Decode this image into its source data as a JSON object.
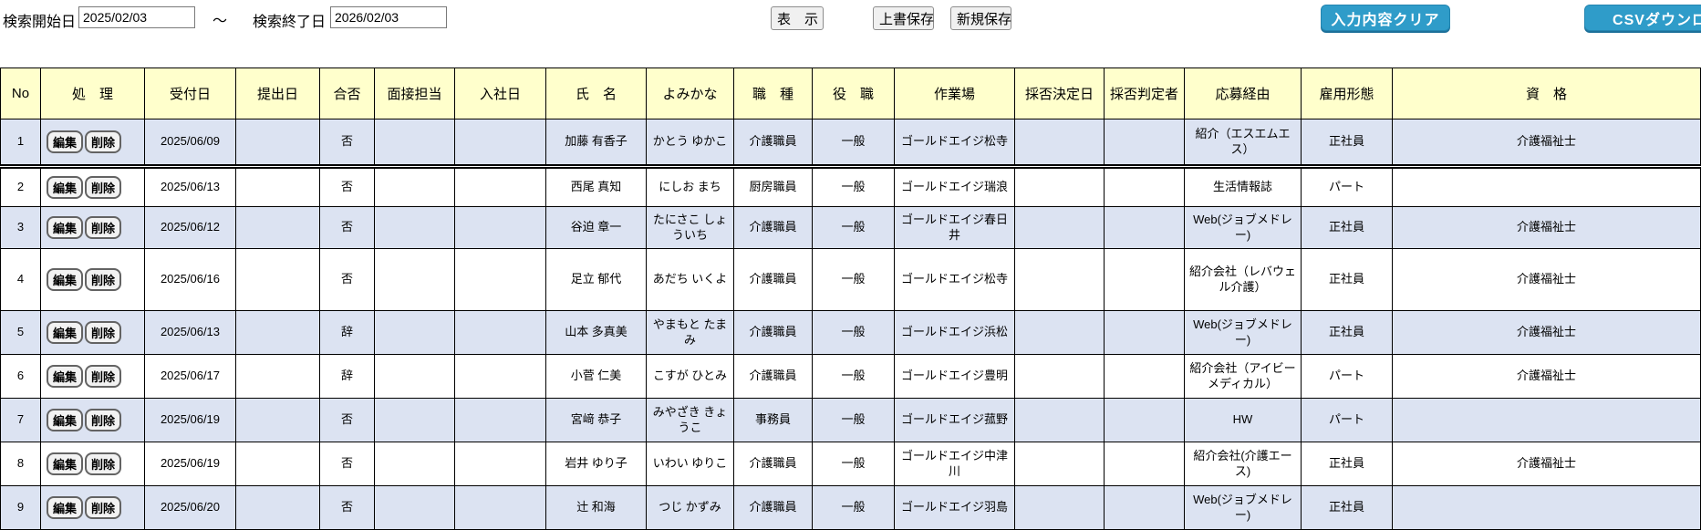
{
  "search_bar": {
    "start_label": "検索開始日",
    "start_value": "2025/02/03",
    "tilde": "～",
    "end_label": "検索終了日",
    "end_value": "2026/02/03",
    "display_button": "表　示",
    "overwrite_save_button": "上書保存",
    "new_save_button": "新規保存",
    "clear_button": "入力内容クリア",
    "csv_button": "CSVダウンロード"
  },
  "colors": {
    "header_bg": "#ffffcc",
    "row_alt_bg": "#dce3f2",
    "accent_blue": "#2f9cc9",
    "grid_border": "#000000"
  },
  "table": {
    "headers": [
      "No",
      "処　理",
      "受付日",
      "提出日",
      "合否",
      "面接担当",
      "入社日",
      "氏　名",
      "よみかな",
      "職　種",
      "役　職",
      "作業場",
      "採否決定日",
      "採否判定者",
      "応募経由",
      "雇用形態",
      "資　格"
    ],
    "edit_label": "編集",
    "delete_label": "削除",
    "rows": [
      {
        "no": "1",
        "receipt": "2025/06/09",
        "submit": "",
        "pass": "否",
        "interviewer": "",
        "join": "",
        "name": "加藤 有香子",
        "kana": "かとう ゆかこ",
        "job": "介護職員",
        "position": "一般",
        "workplace": "ゴールドエイジ松寺",
        "decision_date": "",
        "decision_by": "",
        "route": "紹介（エスエムエス）",
        "employment": "正社員",
        "qualification": "介護福祉士"
      },
      {
        "no": "2",
        "receipt": "2025/06/13",
        "submit": "",
        "pass": "否",
        "interviewer": "",
        "join": "",
        "name": "西尾 真知",
        "kana": "にしお まち",
        "job": "厨房職員",
        "position": "一般",
        "workplace": "ゴールドエイジ瑞浪",
        "decision_date": "",
        "decision_by": "",
        "route": "生活情報誌",
        "employment": "パート",
        "qualification": ""
      },
      {
        "no": "3",
        "receipt": "2025/06/12",
        "submit": "",
        "pass": "否",
        "interviewer": "",
        "join": "",
        "name": "谷迫 章一",
        "kana": "たにさこ しょういち",
        "job": "介護職員",
        "position": "一般",
        "workplace": "ゴールドエイジ春日井",
        "decision_date": "",
        "decision_by": "",
        "route": "Web(ジョブメドレー)",
        "employment": "正社員",
        "qualification": "介護福祉士"
      },
      {
        "no": "4",
        "receipt": "2025/06/16",
        "submit": "",
        "pass": "否",
        "interviewer": "",
        "join": "",
        "name": "足立 郁代",
        "kana": "あだち いくよ",
        "job": "介護職員",
        "position": "一般",
        "workplace": "ゴールドエイジ松寺",
        "decision_date": "",
        "decision_by": "",
        "route": "紹介会社（レバウェル介護）",
        "employment": "正社員",
        "qualification": "介護福祉士"
      },
      {
        "no": "5",
        "receipt": "2025/06/13",
        "submit": "",
        "pass": "辞",
        "interviewer": "",
        "join": "",
        "name": "山本 多真美",
        "kana": "やまもと たまみ",
        "job": "介護職員",
        "position": "一般",
        "workplace": "ゴールドエイジ浜松",
        "decision_date": "",
        "decision_by": "",
        "route": "Web(ジョブメドレー)",
        "employment": "正社員",
        "qualification": "介護福祉士"
      },
      {
        "no": "6",
        "receipt": "2025/06/17",
        "submit": "",
        "pass": "辞",
        "interviewer": "",
        "join": "",
        "name": "小菅 仁美",
        "kana": "こすが ひとみ",
        "job": "介護職員",
        "position": "一般",
        "workplace": "ゴールドエイジ豊明",
        "decision_date": "",
        "decision_by": "",
        "route": "紹介会社（アイビーメディカル）",
        "employment": "パート",
        "qualification": "介護福祉士"
      },
      {
        "no": "7",
        "receipt": "2025/06/19",
        "submit": "",
        "pass": "否",
        "interviewer": "",
        "join": "",
        "name": "宮﨑 恭子",
        "kana": "みやざき きょうこ",
        "job": "事務員",
        "position": "一般",
        "workplace": "ゴールドエイジ菰野",
        "decision_date": "",
        "decision_by": "",
        "route": "HW",
        "employment": "パート",
        "qualification": ""
      },
      {
        "no": "8",
        "receipt": "2025/06/19",
        "submit": "",
        "pass": "否",
        "interviewer": "",
        "join": "",
        "name": "岩井 ゆり子",
        "kana": "いわい ゆりこ",
        "job": "介護職員",
        "position": "一般",
        "workplace": "ゴールドエイジ中津川",
        "decision_date": "",
        "decision_by": "",
        "route": "紹介会社(介護エース)",
        "employment": "正社員",
        "qualification": "介護福祉士"
      },
      {
        "no": "9",
        "receipt": "2025/06/20",
        "submit": "",
        "pass": "否",
        "interviewer": "",
        "join": "",
        "name": "辻 和海",
        "kana": "つじ かずみ",
        "job": "介護職員",
        "position": "一般",
        "workplace": "ゴールドエイジ羽島",
        "decision_date": "",
        "decision_by": "",
        "route": "Web(ジョブメドレー)",
        "employment": "正社員",
        "qualification": ""
      }
    ]
  }
}
